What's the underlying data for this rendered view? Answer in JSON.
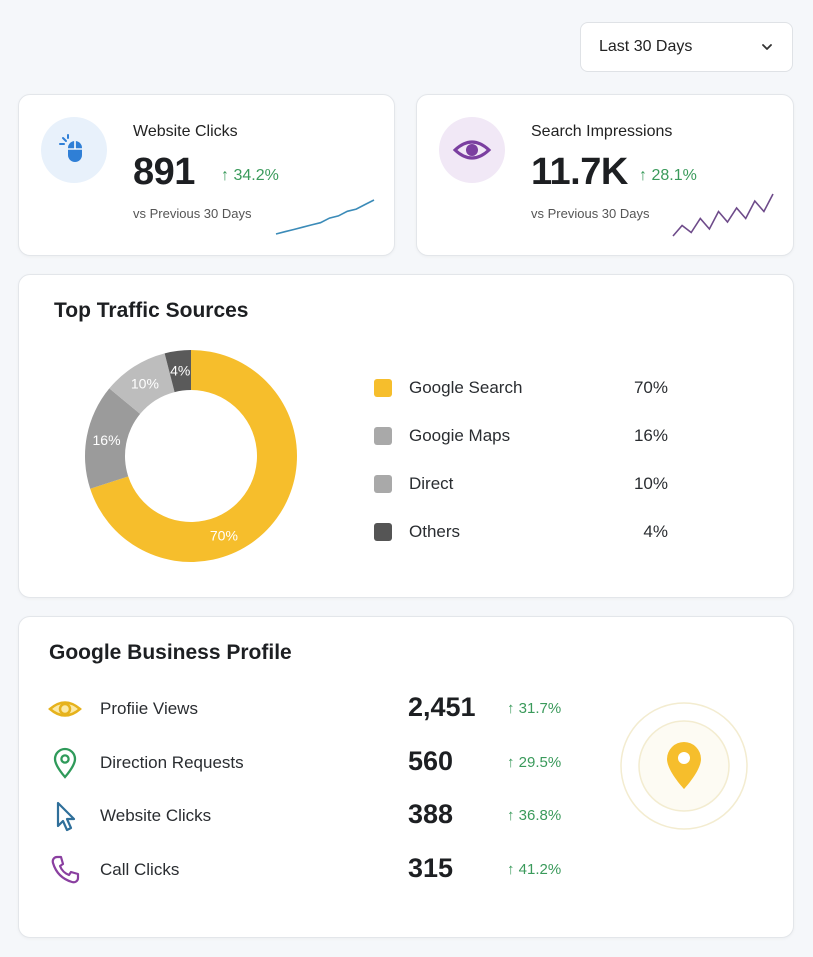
{
  "date_filter": {
    "selected": "Last 30 Days"
  },
  "kpis": [
    {
      "label": "Website Clicks",
      "value": "891",
      "change": "↑ 34.2%",
      "sub": "vs Previous 30 Days",
      "icon": "mouse-icon",
      "icon_color": "#2f7fd6",
      "icon_bg": "#e8f1fb",
      "spark_color": "#3b8bb8",
      "sparkline": [
        2,
        3,
        4,
        5,
        6,
        7,
        9,
        10,
        12,
        13,
        15,
        17
      ]
    },
    {
      "label": "Search Impressions",
      "value": "11.7K",
      "change": "↑ 28.1%",
      "sub": "vs Previous 30 Days",
      "icon": "eye-icon",
      "icon_color": "#7b3fa0",
      "icon_bg": "#f1e8f6",
      "spark_color": "#6e4b8a",
      "sparkline": [
        2,
        5,
        3,
        7,
        4,
        9,
        6,
        10,
        7,
        12,
        9,
        14
      ]
    }
  ],
  "traffic": {
    "title": "Top Traffic Sources",
    "chart_data": {
      "type": "pie",
      "categories": [
        "Google Search",
        "Googie Maps",
        "Direct",
        "Others"
      ],
      "values": [
        70,
        16,
        10,
        4
      ],
      "data_labels": [
        "70%",
        "16%",
        "10%",
        "4%"
      ],
      "colors": [
        "#f6be2c",
        "#9b9b9b",
        "#bdbdbd",
        "#5a5a5a"
      ]
    },
    "legend": [
      {
        "label": "Google Search",
        "pct": "70%",
        "color": "#f6be2c"
      },
      {
        "label": "Googie Maps",
        "pct": "16%",
        "color": "#a9a9a9"
      },
      {
        "label": "Direct",
        "pct": "10%",
        "color": "#a9a9a9"
      },
      {
        "label": "Others",
        "pct": "4%",
        "color": "#555555"
      }
    ]
  },
  "gbp": {
    "title": "Google Business Profile",
    "rows": [
      {
        "label": "Profiie Views",
        "value": "2,451",
        "change": "↑ 31.7%",
        "icon": "eye-icon",
        "icon_color": "#e6b21c"
      },
      {
        "label": "Direction Requests",
        "value": "560",
        "change": "↑ 29.5%",
        "icon": "location-pin-icon",
        "icon_color": "#2f9a5a"
      },
      {
        "label": "Website Clicks",
        "value": "388",
        "change": "↑ 36.8%",
        "icon": "cursor-icon",
        "icon_color": "#2f6f9a"
      },
      {
        "label": "Call Clicks",
        "value": "315",
        "change": "↑ 41.2%",
        "icon": "phone-icon",
        "icon_color": "#8a3fa0"
      }
    ],
    "map_pin_color": "#f6be2c"
  }
}
